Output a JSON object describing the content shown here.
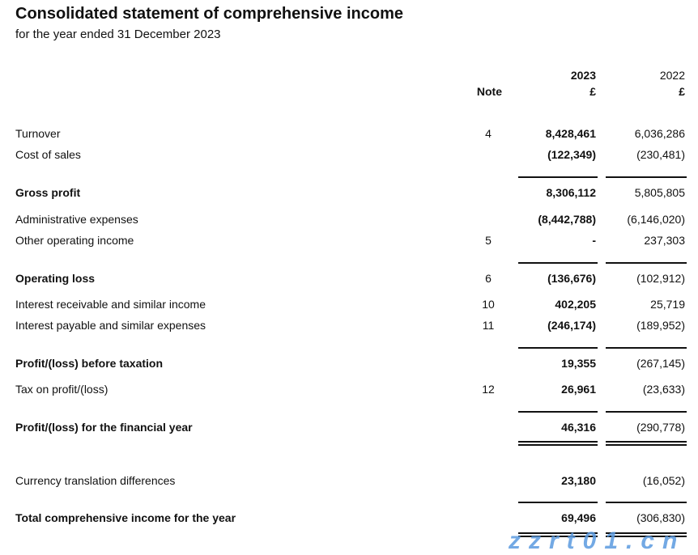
{
  "title": "Consolidated statement of comprehensive income",
  "subtitle": "for the year ended 31 December 2023",
  "headers": {
    "note": "Note",
    "y2023": "2023",
    "y2022": "2022",
    "currency": "£"
  },
  "rows": [
    {
      "label": "Turnover",
      "note": "4",
      "v2023": "8,428,461",
      "v2022": "6,036,286"
    },
    {
      "label": "Cost of sales",
      "note": "",
      "v2023": "(122,349)",
      "v2022": "(230,481)"
    },
    {
      "label": "Gross profit",
      "note": "",
      "v2023": "8,306,112",
      "v2022": "5,805,805"
    },
    {
      "label": "Administrative expenses",
      "note": "",
      "v2023": "(8,442,788)",
      "v2022": "(6,146,020)"
    },
    {
      "label": "Other operating income",
      "note": "5",
      "v2023": "-",
      "v2022": "237,303"
    },
    {
      "label": "Operating loss",
      "note": "6",
      "v2023": "(136,676)",
      "v2022": "(102,912)"
    },
    {
      "label": "Interest receivable and similar income",
      "note": "10",
      "v2023": "402,205",
      "v2022": "25,719"
    },
    {
      "label": "Interest payable and similar expenses",
      "note": "11",
      "v2023": "(246,174)",
      "v2022": "(189,952)"
    },
    {
      "label": "Profit/(loss) before taxation",
      "note": "",
      "v2023": "19,355",
      "v2022": "(267,145)"
    },
    {
      "label": "Tax on profit/(loss)",
      "note": "12",
      "v2023": "26,961",
      "v2022": "(23,633)"
    },
    {
      "label": "Profit/(loss) for the financial year",
      "note": "",
      "v2023": "46,316",
      "v2022": "(290,778)"
    },
    {
      "label": "Currency translation differences",
      "note": "",
      "v2023": "23,180",
      "v2022": "(16,052)"
    },
    {
      "label": "Total comprehensive income for the year",
      "note": "",
      "v2023": "69,496",
      "v2022": "(306,830)"
    }
  ],
  "watermark": "zzrt01.cn"
}
